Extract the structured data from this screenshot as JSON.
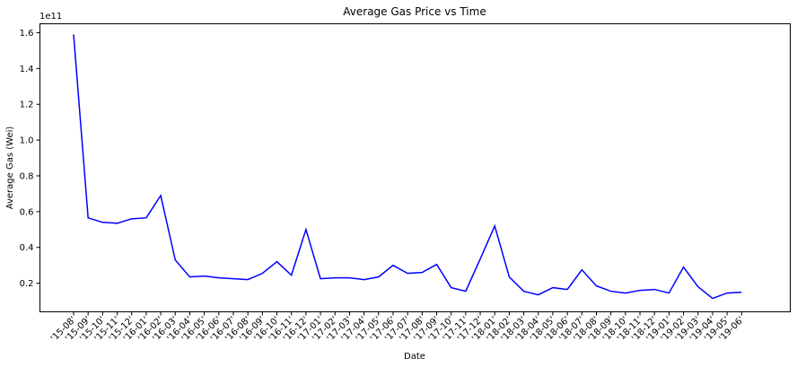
{
  "chart_data": {
    "type": "line",
    "title": "Average Gas Price vs Time",
    "xlabel": "Date",
    "ylabel": "Average Gas (Wei)",
    "y_scale_label": "1e11",
    "ylim": [
      0.04,
      1.65
    ],
    "yticks": [
      0.2,
      0.4,
      0.6,
      0.8,
      1.0,
      1.2,
      1.4,
      1.6
    ],
    "ytick_labels": [
      "0.2",
      "0.4",
      "0.6",
      "0.8",
      "1.0",
      "1.2",
      "1.4",
      "1.6"
    ],
    "grid": false,
    "line_color": "#0000ff",
    "categories": [
      "'15-08'",
      "'15-09'",
      "'15-10'",
      "'15-11'",
      "'15-12'",
      "'16-01'",
      "'16-02'",
      "'16-03'",
      "'16-04'",
      "'16-05'",
      "'16-06'",
      "'16-07'",
      "'16-08'",
      "'16-09'",
      "'16-10'",
      "'16-11'",
      "'16-12'",
      "'17-01'",
      "'17-02'",
      "'17-03'",
      "'17-04'",
      "'17-05'",
      "'17-06'",
      "'17-07'",
      "'17-08'",
      "'17-09'",
      "'17-10'",
      "'17-11'",
      "'17-12'",
      "'18-01'",
      "'18-02'",
      "'18-03'",
      "'18-04'",
      "'18-05'",
      "'18-06'",
      "'18-07'",
      "'18-08'",
      "'18-09'",
      "'18-10'",
      "'18-11'",
      "'18-12'",
      "'19-01'",
      "'19-02'",
      "'19-03'",
      "'19-04'",
      "'19-05'",
      "'19-06'"
    ],
    "series": [
      {
        "values": [
          1.59,
          0.565,
          0.54,
          0.535,
          0.56,
          0.565,
          0.69,
          0.33,
          0.235,
          0.24,
          0.23,
          0.225,
          0.22,
          0.255,
          0.32,
          0.245,
          0.5,
          0.225,
          0.23,
          0.23,
          0.22,
          0.235,
          0.3,
          0.255,
          0.26,
          0.305,
          0.175,
          0.155,
          0.335,
          0.52,
          0.235,
          0.155,
          0.135,
          0.175,
          0.165,
          0.275,
          0.185,
          0.155,
          0.145,
          0.16,
          0.165,
          0.145,
          0.29,
          0.18,
          0.115,
          0.145,
          0.15
        ]
      }
    ]
  }
}
